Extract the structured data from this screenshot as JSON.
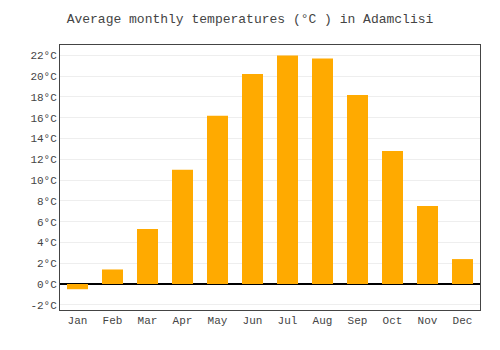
{
  "chart_data": {
    "type": "bar",
    "title": "Average monthly temperatures (°C ) in Adamclisi",
    "categories": [
      "Jan",
      "Feb",
      "Mar",
      "Apr",
      "May",
      "Jun",
      "Jul",
      "Aug",
      "Sep",
      "Oct",
      "Nov",
      "Dec"
    ],
    "values": [
      -0.5,
      1.4,
      5.3,
      11.0,
      16.2,
      20.2,
      22.0,
      21.7,
      18.2,
      12.8,
      7.5,
      2.4
    ],
    "color": "#FFAA00",
    "ylim": [
      -2.5,
      23
    ],
    "yticks": [
      {
        "value": -2,
        "label": "-2°C"
      },
      {
        "value": 0,
        "label": "0°C"
      },
      {
        "value": 2,
        "label": "2°C"
      },
      {
        "value": 4,
        "label": "4°C"
      },
      {
        "value": 6,
        "label": "6°C"
      },
      {
        "value": 8,
        "label": "8°C"
      },
      {
        "value": 10,
        "label": "10°C"
      },
      {
        "value": 12,
        "label": "12°C"
      },
      {
        "value": 14,
        "label": "14°C"
      },
      {
        "value": 16,
        "label": "16°C"
      },
      {
        "value": 18,
        "label": "18°C"
      },
      {
        "value": 20,
        "label": "20°C"
      },
      {
        "value": 22,
        "label": "22°C"
      }
    ],
    "grid": true
  }
}
